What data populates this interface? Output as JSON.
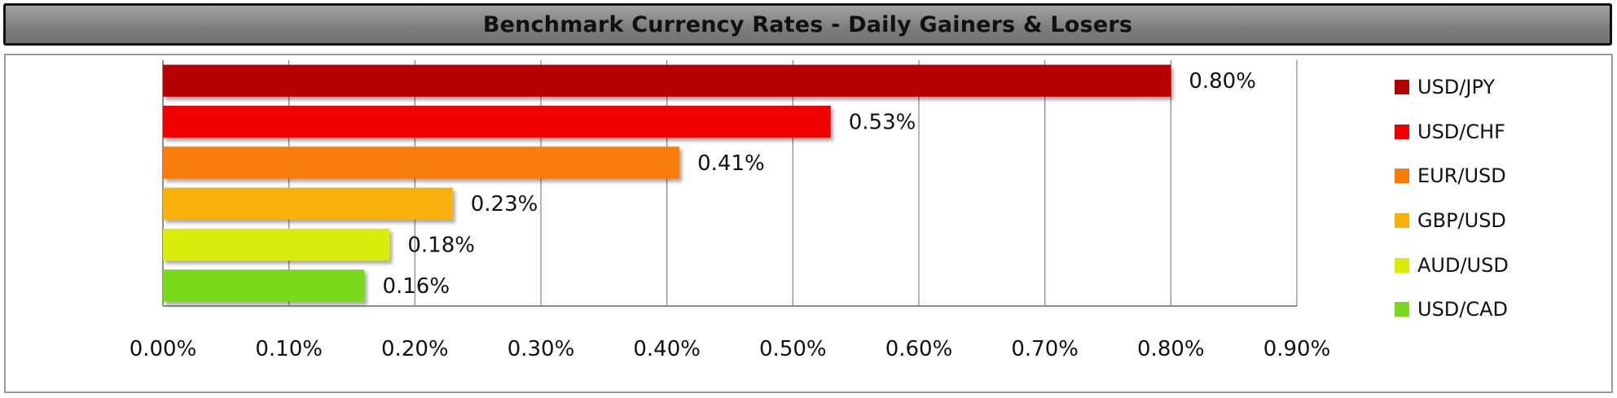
{
  "chart_data": {
    "type": "bar",
    "orientation": "horizontal",
    "title": "Benchmark Currency Rates - Daily Gainers & Losers",
    "categories": [
      "USD/JPY",
      "USD/CHF",
      "EUR/USD",
      "GBP/USD",
      "AUD/USD",
      "USD/CAD"
    ],
    "values": [
      0.8,
      0.53,
      0.41,
      0.23,
      0.18,
      0.16
    ],
    "value_labels": [
      "0.80%",
      "0.53%",
      "0.41%",
      "0.23%",
      "0.18%",
      "0.16%"
    ],
    "colors": [
      "#b40000",
      "#f00000",
      "#f87d08",
      "#f8b008",
      "#d8ec08",
      "#7cd81c"
    ],
    "xlim": [
      0,
      0.9
    ],
    "x_ticks": [
      0.0,
      0.1,
      0.2,
      0.3,
      0.4,
      0.5,
      0.6,
      0.7,
      0.8,
      0.9
    ],
    "x_tick_labels": [
      "0.00%",
      "0.10%",
      "0.20%",
      "0.30%",
      "0.40%",
      "0.50%",
      "0.60%",
      "0.70%",
      "0.80%",
      "0.90%"
    ],
    "grid": "vertical",
    "legend": "right",
    "xlabel": "",
    "ylabel": ""
  }
}
